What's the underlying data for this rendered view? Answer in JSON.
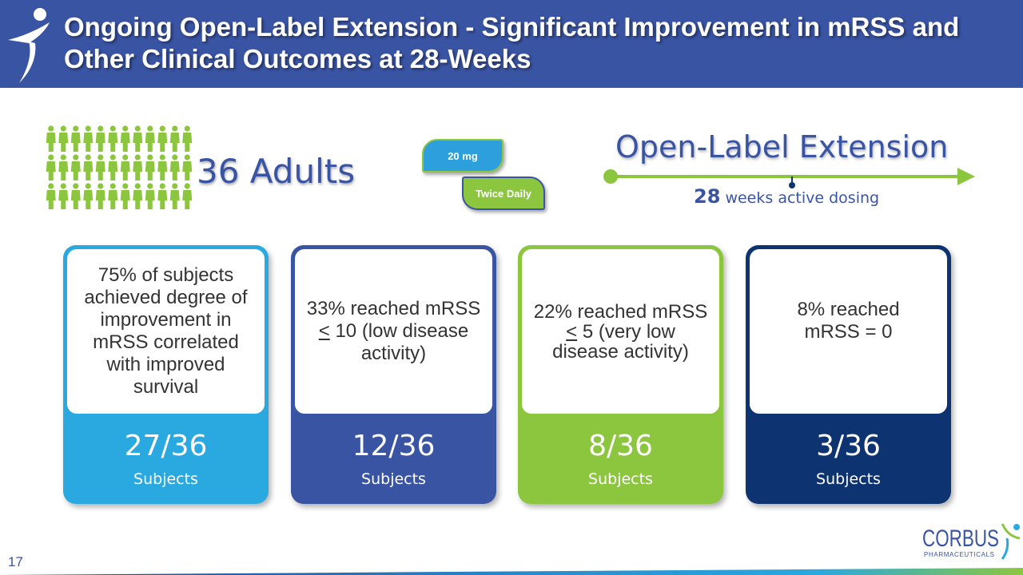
{
  "header": {
    "title": "Ongoing Open-Label Extension - Significant Improvement in mRSS and Other Clinical Outcomes at 28-Weeks"
  },
  "population": {
    "label": "36 Adults",
    "icon_rows": 3,
    "icons_per_row": 12,
    "icon_color": "#8cc63f"
  },
  "dosing": {
    "dose": "20 mg",
    "frequency": "Twice Daily"
  },
  "extension": {
    "title": "Open-Label Extension",
    "weeks_number": "28",
    "weeks_text": "weeks active dosing"
  },
  "outcomes": [
    {
      "description": "75% of subjects achieved degree of improvement in mRSS correlated with improved survival",
      "value": "27/36",
      "unit": "Subjects",
      "color": "#2aa8e0"
    },
    {
      "description_pre": "33% reached mRSS ",
      "description_symbol": "<",
      "description_post": " 10 (low disease activity)",
      "value": "12/36",
      "unit": "Subjects",
      "color": "#3a54a4"
    },
    {
      "description_pre": "22% reached mRSS ",
      "description_symbol": "<",
      "description_post": " 5 (very low disease activity)",
      "value": "8/36",
      "unit": "Subjects",
      "color": "#8cc63f"
    },
    {
      "description": "8% reached mRSS = 0",
      "value": "3/36",
      "unit": "Subjects",
      "color": "#0d3470"
    }
  ],
  "footer": {
    "slide_number": "17",
    "logo_name": "CORBUS",
    "logo_tagline": "PHARMACEUTICALS"
  }
}
